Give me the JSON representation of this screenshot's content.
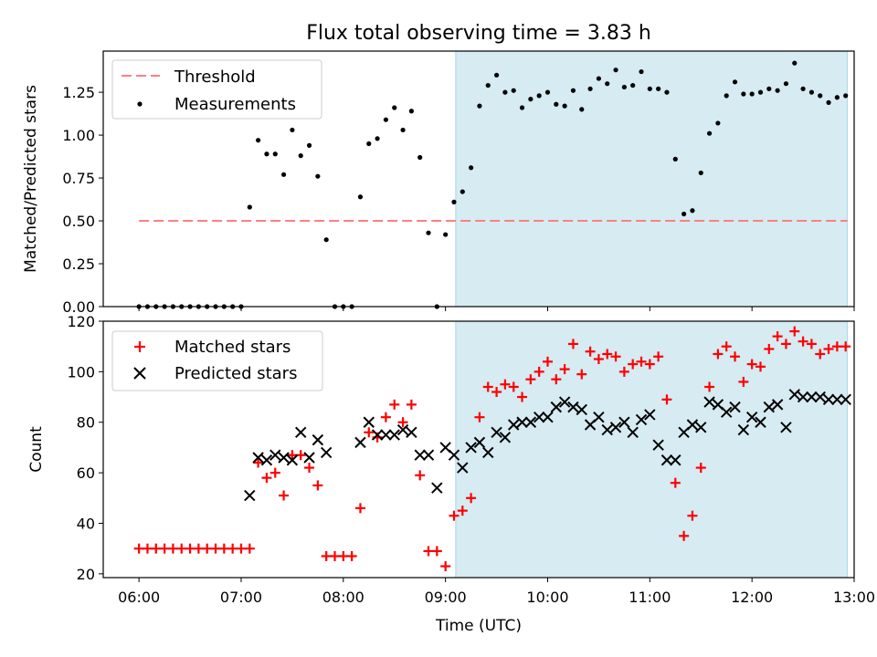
{
  "title": "Flux total observing time = 3.83 h",
  "colors": {
    "threshold": "#ff7f7f",
    "measurements": "#000000",
    "matched": "#ff0000",
    "predicted": "#000000",
    "shade": "#add8e6"
  },
  "chart_data": [
    {
      "type": "scatter",
      "ylabel": "Matched/Predicted stars",
      "xlim": [
        5.65,
        13.0
      ],
      "ylim": [
        0.0,
        1.49
      ],
      "yticks": [
        0.0,
        0.25,
        0.5,
        0.75,
        1.0,
        1.25
      ],
      "ytick_labels": [
        "0.00",
        "0.25",
        "0.50",
        "0.75",
        "1.00",
        "1.25"
      ],
      "legend_position": "top-left",
      "shaded_region": {
        "x_start": "09:06",
        "x_end": "12:56"
      },
      "threshold": {
        "name": "Threshold",
        "y": 0.5,
        "x_start": "06:00",
        "x_end": "12:56",
        "style": "dashed"
      },
      "series": [
        {
          "name": "Measurements",
          "marker": "dot",
          "x": [
            "06:00",
            "06:05",
            "06:10",
            "06:15",
            "06:20",
            "06:25",
            "06:30",
            "06:35",
            "06:40",
            "06:45",
            "06:50",
            "06:55",
            "07:00",
            "07:05",
            "07:10",
            "07:15",
            "07:20",
            "07:25",
            "07:30",
            "07:35",
            "07:40",
            "07:45",
            "07:50",
            "07:55",
            "08:00",
            "08:05",
            "08:10",
            "08:15",
            "08:20",
            "08:25",
            "08:30",
            "08:35",
            "08:40",
            "08:45",
            "08:50",
            "08:55",
            "09:00",
            "09:05",
            "09:10",
            "09:15",
            "09:20",
            "09:25",
            "09:30",
            "09:35",
            "09:40",
            "09:45",
            "09:50",
            "09:55",
            "10:00",
            "10:05",
            "10:10",
            "10:15",
            "10:20",
            "10:25",
            "10:30",
            "10:35",
            "10:40",
            "10:45",
            "10:50",
            "10:55",
            "11:00",
            "11:05",
            "11:10",
            "11:15",
            "11:20",
            "11:25",
            "11:30",
            "11:35",
            "11:40",
            "11:45",
            "11:50",
            "11:55",
            "12:00",
            "12:05",
            "12:10",
            "12:15",
            "12:20",
            "12:25",
            "12:30",
            "12:35",
            "12:40",
            "12:45",
            "12:50",
            "12:55"
          ],
          "y": [
            0.0,
            0.0,
            0.0,
            0.0,
            0.0,
            0.0,
            0.0,
            0.0,
            0.0,
            0.0,
            0.0,
            0.0,
            0.0,
            0.58,
            0.97,
            0.89,
            0.89,
            0.77,
            1.03,
            0.88,
            0.94,
            0.76,
            0.39,
            0.0,
            0.0,
            0.0,
            0.64,
            0.95,
            0.98,
            1.09,
            1.16,
            1.03,
            1.14,
            0.87,
            0.43,
            0.0,
            0.42,
            0.61,
            0.67,
            0.81,
            1.17,
            1.29,
            1.35,
            1.25,
            1.26,
            1.16,
            1.21,
            1.23,
            1.25,
            1.18,
            1.17,
            1.26,
            1.15,
            1.27,
            1.33,
            1.3,
            1.38,
            1.28,
            1.29,
            1.37,
            1.27,
            1.27,
            1.25,
            0.86,
            0.54,
            0.56,
            0.78,
            1.01,
            1.07,
            1.23,
            1.31,
            1.24,
            1.24,
            1.25,
            1.27,
            1.26,
            1.3,
            1.42,
            1.27,
            1.25,
            1.23,
            1.19,
            1.22,
            1.23
          ]
        }
      ]
    },
    {
      "type": "scatter",
      "xlabel": "Time (UTC)",
      "ylabel": "Count",
      "xlim": [
        5.65,
        13.0
      ],
      "ylim": [
        18.5,
        120
      ],
      "yticks": [
        20,
        40,
        60,
        80,
        100,
        120
      ],
      "xticks": [
        "06:00",
        "07:00",
        "08:00",
        "09:00",
        "10:00",
        "11:00",
        "12:00",
        "13:00"
      ],
      "legend_position": "top-left",
      "shaded_region": {
        "x_start": "09:06",
        "x_end": "12:56"
      },
      "series": [
        {
          "name": "Matched stars",
          "marker": "plus",
          "x": [
            "06:00",
            "06:05",
            "06:10",
            "06:15",
            "06:20",
            "06:25",
            "06:30",
            "06:35",
            "06:40",
            "06:45",
            "06:50",
            "06:55",
            "07:00",
            "07:05",
            "07:10",
            "07:15",
            "07:20",
            "07:25",
            "07:30",
            "07:35",
            "07:40",
            "07:45",
            "07:50",
            "07:55",
            "08:00",
            "08:05",
            "08:10",
            "08:15",
            "08:20",
            "08:25",
            "08:30",
            "08:35",
            "08:40",
            "08:45",
            "08:50",
            "08:55",
            "09:00",
            "09:05",
            "09:10",
            "09:15",
            "09:20",
            "09:25",
            "09:30",
            "09:35",
            "09:40",
            "09:45",
            "09:50",
            "09:55",
            "10:00",
            "10:05",
            "10:10",
            "10:15",
            "10:20",
            "10:25",
            "10:30",
            "10:35",
            "10:40",
            "10:45",
            "10:50",
            "10:55",
            "11:00",
            "11:05",
            "11:10",
            "11:15",
            "11:20",
            "11:25",
            "11:30",
            "11:35",
            "11:40",
            "11:45",
            "11:50",
            "11:55",
            "12:00",
            "12:05",
            "12:10",
            "12:15",
            "12:20",
            "12:25",
            "12:30",
            "12:35",
            "12:40",
            "12:45",
            "12:50",
            "12:55"
          ],
          "y": [
            30,
            30,
            30,
            30,
            30,
            30,
            30,
            30,
            30,
            30,
            30,
            30,
            30,
            30,
            64,
            58,
            60,
            51,
            67,
            67,
            62,
            55,
            27,
            27,
            27,
            27,
            46,
            76,
            74,
            82,
            87,
            80,
            87,
            59,
            29,
            29,
            23,
            43,
            45,
            50,
            82,
            94,
            92,
            95,
            94,
            90,
            97,
            100,
            104,
            97,
            101,
            111,
            99,
            108,
            105,
            107,
            106,
            100,
            103,
            104,
            103,
            106,
            89,
            56,
            35,
            43,
            62,
            94,
            107,
            110,
            106,
            96,
            103,
            102,
            109,
            114,
            111,
            116,
            112,
            111,
            107,
            109,
            110,
            110
          ]
        },
        {
          "name": "Predicted stars",
          "marker": "x",
          "x": [
            "07:05",
            "07:10",
            "07:15",
            "07:20",
            "07:25",
            "07:30",
            "07:35",
            "07:40",
            "07:45",
            "07:50",
            "08:10",
            "08:15",
            "08:20",
            "08:25",
            "08:30",
            "08:35",
            "08:40",
            "08:45",
            "08:50",
            "08:55",
            "09:00",
            "09:05",
            "09:10",
            "09:15",
            "09:20",
            "09:25",
            "09:30",
            "09:35",
            "09:40",
            "09:45",
            "09:50",
            "09:55",
            "10:00",
            "10:05",
            "10:10",
            "10:15",
            "10:20",
            "10:25",
            "10:30",
            "10:35",
            "10:40",
            "10:45",
            "10:50",
            "10:55",
            "11:00",
            "11:05",
            "11:10",
            "11:15",
            "11:20",
            "11:25",
            "11:30",
            "11:35",
            "11:40",
            "11:45",
            "11:50",
            "11:55",
            "12:00",
            "12:05",
            "12:10",
            "12:15",
            "12:20",
            "12:25",
            "12:30",
            "12:35",
            "12:40",
            "12:45",
            "12:50",
            "12:55"
          ],
          "y": [
            51,
            66,
            65,
            67,
            66,
            65,
            76,
            66,
            73,
            68,
            72,
            80,
            75,
            75,
            75,
            77,
            76,
            67,
            67,
            54,
            70,
            67,
            62,
            70,
            72,
            68,
            76,
            74,
            79,
            80,
            80,
            82,
            82,
            86,
            88,
            86,
            85,
            79,
            82,
            77,
            78,
            80,
            76,
            81,
            83,
            71,
            65,
            65,
            76,
            79,
            78,
            88,
            87,
            84,
            86,
            77,
            82,
            80,
            86,
            87,
            78,
            91,
            90,
            90,
            90,
            89,
            89,
            89
          ]
        }
      ]
    }
  ]
}
